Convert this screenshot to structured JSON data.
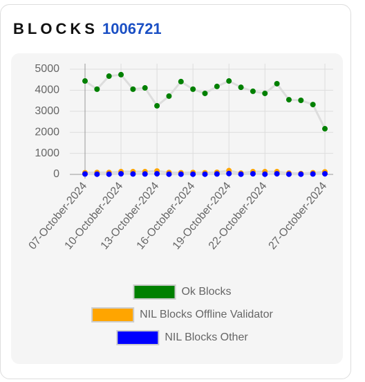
{
  "header": {
    "title": "BLOCKS",
    "count": "1006721"
  },
  "chart_data": {
    "type": "line",
    "categories": [
      "07-October-2024",
      null,
      null,
      "10-October-2024",
      null,
      null,
      "13-October-2024",
      null,
      null,
      "16-October-2024",
      null,
      null,
      "19-October-2024",
      null,
      null,
      "22-October-2024",
      null,
      null,
      null,
      null,
      "27-October-2024"
    ],
    "series": [
      {
        "name": "Ok Blocks",
        "color": "#008000",
        "values": [
          4440,
          4050,
          4670,
          4740,
          4050,
          4110,
          3260,
          3720,
          4410,
          4050,
          3850,
          4180,
          4440,
          4140,
          3950,
          3850,
          4310,
          3550,
          3520,
          3320,
          2170
        ]
      },
      {
        "name": "NIL Blocks Offline Validator",
        "color": "#ffa500",
        "values": [
          80,
          90,
          90,
          130,
          130,
          130,
          160,
          90,
          80,
          90,
          80,
          100,
          180,
          60,
          130,
          130,
          130,
          60,
          40,
          80,
          120
        ]
      },
      {
        "name": "NIL Blocks Other",
        "color": "#0000ff",
        "values": [
          20,
          10,
          10,
          30,
          20,
          20,
          30,
          10,
          10,
          10,
          10,
          20,
          40,
          10,
          30,
          10,
          30,
          10,
          10,
          20,
          30
        ]
      }
    ],
    "ylim": [
      0,
      5000
    ],
    "yticks": [
      0,
      1000,
      2000,
      3000,
      4000,
      5000
    ],
    "grid": true
  }
}
